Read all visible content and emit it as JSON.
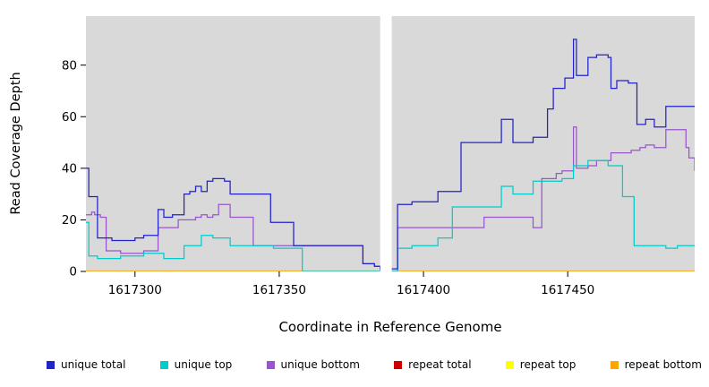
{
  "chart_data": {
    "type": "line",
    "style": "step",
    "title": "",
    "xlabel": "Coordinate in Reference Genome",
    "ylabel": "Read Coverage Depth",
    "xlim": [
      1617283,
      1617494
    ],
    "ylim": [
      0,
      99
    ],
    "xticks": [
      1617300,
      1617350,
      1617400,
      1617450
    ],
    "yticks": [
      0,
      20,
      40,
      60,
      80
    ],
    "panel_bg": "#d9d9d9",
    "gap": [
      1617385,
      1617389
    ],
    "draw_order": [
      "repeat total",
      "repeat top",
      "repeat bottom",
      "unique bottom",
      "unique top",
      "unique total"
    ],
    "series": [
      {
        "name": "unique total",
        "color": "#2222cc",
        "points": [
          [
            1617283,
            40
          ],
          [
            1617284,
            29
          ],
          [
            1617286,
            29
          ],
          [
            1617287,
            13
          ],
          [
            1617292,
            12
          ],
          [
            1617299,
            12
          ],
          [
            1617300,
            13
          ],
          [
            1617303,
            14
          ],
          [
            1617308,
            24
          ],
          [
            1617310,
            21
          ],
          [
            1617313,
            22
          ],
          [
            1617316,
            22
          ],
          [
            1617317,
            30
          ],
          [
            1617319,
            31
          ],
          [
            1617321,
            33
          ],
          [
            1617323,
            31
          ],
          [
            1617325,
            35
          ],
          [
            1617327,
            36
          ],
          [
            1617331,
            35
          ],
          [
            1617333,
            30
          ],
          [
            1617345,
            30
          ],
          [
            1617347,
            19
          ],
          [
            1617353,
            19
          ],
          [
            1617355,
            10
          ],
          [
            1617377,
            10
          ],
          [
            1617379,
            3
          ],
          [
            1617383,
            2
          ],
          [
            1617385,
            1
          ],
          [
            1617390,
            1
          ],
          [
            1617391,
            26
          ],
          [
            1617395,
            26
          ],
          [
            1617396,
            27
          ],
          [
            1617404,
            27
          ],
          [
            1617405,
            31
          ],
          [
            1617412,
            31
          ],
          [
            1617413,
            50
          ],
          [
            1617425,
            50
          ],
          [
            1617427,
            59
          ],
          [
            1617430,
            59
          ],
          [
            1617431,
            50
          ],
          [
            1617437,
            50
          ],
          [
            1617438,
            52
          ],
          [
            1617442,
            52
          ],
          [
            1617443,
            63
          ],
          [
            1617445,
            71
          ],
          [
            1617448,
            71
          ],
          [
            1617449,
            75
          ],
          [
            1617451,
            75
          ],
          [
            1617452,
            90
          ],
          [
            1617453,
            76
          ],
          [
            1617456,
            76
          ],
          [
            1617457,
            83
          ],
          [
            1617459,
            83
          ],
          [
            1617460,
            84
          ],
          [
            1617463,
            84
          ],
          [
            1617464,
            83
          ],
          [
            1617465,
            71
          ],
          [
            1617467,
            74
          ],
          [
            1617470,
            74
          ],
          [
            1617471,
            73
          ],
          [
            1617473,
            73
          ],
          [
            1617474,
            57
          ],
          [
            1617477,
            59
          ],
          [
            1617479,
            59
          ],
          [
            1617480,
            56
          ],
          [
            1617483,
            56
          ],
          [
            1617484,
            64
          ],
          [
            1617494,
            64
          ]
        ]
      },
      {
        "name": "unique top",
        "color": "#00cccc",
        "points": [
          [
            1617283,
            19
          ],
          [
            1617284,
            6
          ],
          [
            1617287,
            5
          ],
          [
            1617292,
            5
          ],
          [
            1617295,
            6
          ],
          [
            1617301,
            6
          ],
          [
            1617303,
            7
          ],
          [
            1617308,
            7
          ],
          [
            1617310,
            5
          ],
          [
            1617313,
            5
          ],
          [
            1617316,
            5
          ],
          [
            1617317,
            10
          ],
          [
            1617322,
            10
          ],
          [
            1617323,
            14
          ],
          [
            1617326,
            14
          ],
          [
            1617327,
            13
          ],
          [
            1617331,
            13
          ],
          [
            1617333,
            10
          ],
          [
            1617347,
            10
          ],
          [
            1617348,
            9
          ],
          [
            1617357,
            9
          ],
          [
            1617358,
            0
          ],
          [
            1617390,
            0
          ],
          [
            1617391,
            9
          ],
          [
            1617395,
            9
          ],
          [
            1617396,
            10
          ],
          [
            1617404,
            10
          ],
          [
            1617405,
            13
          ],
          [
            1617409,
            13
          ],
          [
            1617410,
            25
          ],
          [
            1617425,
            25
          ],
          [
            1617427,
            33
          ],
          [
            1617430,
            33
          ],
          [
            1617431,
            30
          ],
          [
            1617437,
            30
          ],
          [
            1617438,
            35
          ],
          [
            1617443,
            35
          ],
          [
            1617448,
            36
          ],
          [
            1617451,
            36
          ],
          [
            1617452,
            41
          ],
          [
            1617456,
            41
          ],
          [
            1617457,
            43
          ],
          [
            1617463,
            43
          ],
          [
            1617464,
            41
          ],
          [
            1617468,
            41
          ],
          [
            1617469,
            29
          ],
          [
            1617472,
            29
          ],
          [
            1617473,
            10
          ],
          [
            1617483,
            10
          ],
          [
            1617484,
            9
          ],
          [
            1617487,
            9
          ],
          [
            1617488,
            10
          ],
          [
            1617494,
            10
          ]
        ]
      },
      {
        "name": "unique bottom",
        "color": "#9955cc",
        "points": [
          [
            1617283,
            22
          ],
          [
            1617285,
            23
          ],
          [
            1617286,
            22
          ],
          [
            1617288,
            21
          ],
          [
            1617290,
            8
          ],
          [
            1617295,
            7
          ],
          [
            1617301,
            7
          ],
          [
            1617303,
            8
          ],
          [
            1617308,
            17
          ],
          [
            1617314,
            17
          ],
          [
            1617315,
            20
          ],
          [
            1617321,
            21
          ],
          [
            1617323,
            22
          ],
          [
            1617325,
            21
          ],
          [
            1617327,
            22
          ],
          [
            1617329,
            26
          ],
          [
            1617331,
            26
          ],
          [
            1617333,
            21
          ],
          [
            1617340,
            21
          ],
          [
            1617341,
            10
          ],
          [
            1617377,
            10
          ],
          [
            1617379,
            3
          ],
          [
            1617383,
            2
          ],
          [
            1617385,
            0
          ],
          [
            1617390,
            0
          ],
          [
            1617391,
            17
          ],
          [
            1617420,
            17
          ],
          [
            1617421,
            21
          ],
          [
            1617437,
            21
          ],
          [
            1617438,
            17
          ],
          [
            1617440,
            17
          ],
          [
            1617441,
            36
          ],
          [
            1617444,
            36
          ],
          [
            1617446,
            38
          ],
          [
            1617448,
            39
          ],
          [
            1617451,
            39
          ],
          [
            1617452,
            56
          ],
          [
            1617453,
            40
          ],
          [
            1617457,
            41
          ],
          [
            1617460,
            43
          ],
          [
            1617464,
            43
          ],
          [
            1617465,
            46
          ],
          [
            1617470,
            46
          ],
          [
            1617472,
            47
          ],
          [
            1617475,
            48
          ],
          [
            1617477,
            49
          ],
          [
            1617480,
            48
          ],
          [
            1617483,
            48
          ],
          [
            1617484,
            55
          ],
          [
            1617490,
            55
          ],
          [
            1617491,
            48
          ],
          [
            1617492,
            44
          ],
          [
            1617494,
            39
          ]
        ]
      },
      {
        "name": "repeat total",
        "color": "#cc0000",
        "points": [
          [
            1617283,
            0
          ],
          [
            1617494,
            0
          ]
        ]
      },
      {
        "name": "repeat top",
        "color": "#ffff00",
        "points": [
          [
            1617283,
            0
          ],
          [
            1617494,
            0
          ]
        ]
      },
      {
        "name": "repeat bottom",
        "color": "#ffa500",
        "points": [
          [
            1617283,
            0
          ],
          [
            1617494,
            0
          ]
        ]
      }
    ]
  }
}
